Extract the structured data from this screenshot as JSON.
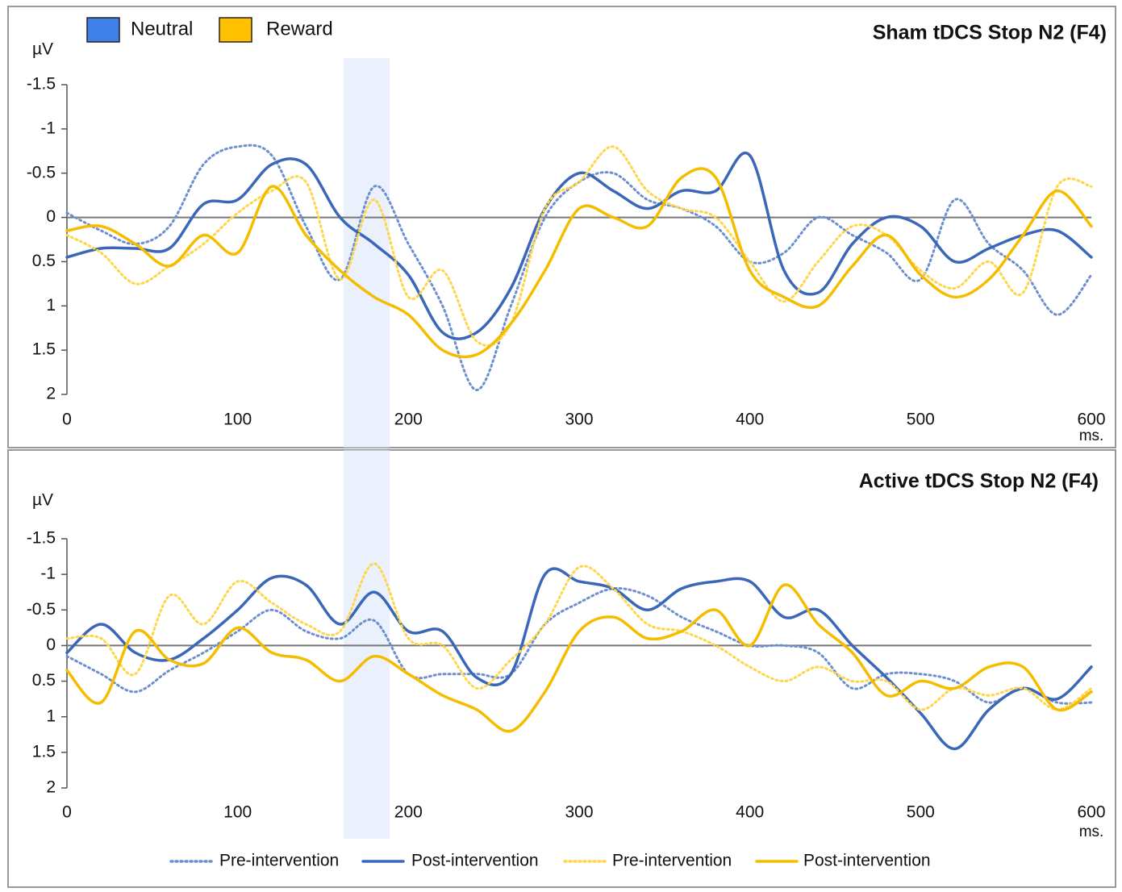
{
  "legend_groups": [
    {
      "name": "Neutral",
      "color": "#3f7fe8"
    },
    {
      "name": "Reward",
      "color": "#ffc000"
    }
  ],
  "chart_data": [
    {
      "type": "line",
      "title": "Sham tDCS Stop N2 (F4)",
      "y_label": "µV",
      "x_label": "ms.",
      "xlim": [
        0,
        600
      ],
      "xticks": [
        0,
        100,
        200,
        300,
        400,
        500,
        600
      ],
      "ylim": [
        2,
        -1.5
      ],
      "yticks": [
        -1.5,
        -1,
        -0.5,
        0,
        0.5,
        1,
        1.5,
        2
      ],
      "highlight": [
        162,
        189
      ],
      "x": [
        0,
        20,
        40,
        60,
        80,
        100,
        120,
        140,
        160,
        180,
        200,
        220,
        240,
        260,
        280,
        300,
        320,
        340,
        360,
        380,
        400,
        420,
        440,
        460,
        480,
        500,
        520,
        540,
        560,
        580,
        600
      ],
      "series": [
        {
          "name": "Pre-intervention",
          "color": "#6e8fcf",
          "dash": "dotted",
          "values": [
            -0.05,
            0.15,
            0.3,
            0.1,
            -0.6,
            -0.8,
            -0.7,
            0.1,
            0.7,
            -0.35,
            0.3,
            1.0,
            1.95,
            1.0,
            0.0,
            -0.4,
            -0.5,
            -0.2,
            -0.1,
            0.1,
            0.5,
            0.4,
            0.0,
            0.2,
            0.4,
            0.7,
            -0.2,
            0.3,
            0.6,
            1.1,
            0.65
          ]
        },
        {
          "name": "Post-intervention",
          "color": "#3a67b8",
          "dash": "solid",
          "values": [
            0.45,
            0.35,
            0.35,
            0.35,
            -0.15,
            -0.2,
            -0.6,
            -0.6,
            0.0,
            0.3,
            0.65,
            1.3,
            1.3,
            0.8,
            -0.1,
            -0.5,
            -0.3,
            -0.1,
            -0.3,
            -0.3,
            -0.7,
            0.6,
            0.85,
            0.3,
            0.0,
            0.1,
            0.5,
            0.35,
            0.2,
            0.15,
            0.45
          ]
        },
        {
          "name": "Pre-intervention",
          "color": "#ffd54a",
          "dash": "dotted",
          "values": [
            0.2,
            0.4,
            0.75,
            0.55,
            0.3,
            -0.05,
            -0.3,
            -0.4,
            0.7,
            -0.2,
            0.9,
            0.6,
            1.4,
            1.2,
            -0.1,
            -0.4,
            -0.8,
            -0.3,
            -0.1,
            0.0,
            0.5,
            0.95,
            0.5,
            0.1,
            0.2,
            0.6,
            0.8,
            0.5,
            0.85,
            -0.35,
            -0.35
          ]
        },
        {
          "name": "Post-intervention",
          "color": "#f5bd00",
          "dash": "solid",
          "values": [
            0.15,
            0.1,
            0.3,
            0.55,
            0.2,
            0.4,
            -0.35,
            0.2,
            0.6,
            0.9,
            1.1,
            1.5,
            1.55,
            1.2,
            0.6,
            -0.1,
            0.0,
            0.1,
            -0.45,
            -0.45,
            0.6,
            0.9,
            1.0,
            0.55,
            0.2,
            0.65,
            0.9,
            0.7,
            0.2,
            -0.3,
            0.1
          ]
        }
      ]
    },
    {
      "type": "line",
      "title": "Active tDCS Stop N2 (F4)",
      "y_label": "µV",
      "x_label": "ms.",
      "xlim": [
        0,
        600
      ],
      "xticks": [
        0,
        100,
        200,
        300,
        400,
        500,
        600
      ],
      "ylim": [
        2,
        -1.5
      ],
      "yticks": [
        -1.5,
        -1,
        -0.5,
        0,
        0.5,
        1,
        1.5,
        2
      ],
      "highlight": [
        162,
        189
      ],
      "x": [
        0,
        20,
        40,
        60,
        80,
        100,
        120,
        140,
        160,
        180,
        200,
        220,
        240,
        260,
        280,
        300,
        320,
        340,
        360,
        380,
        400,
        420,
        440,
        460,
        480,
        500,
        520,
        540,
        560,
        580,
        600
      ],
      "series": [
        {
          "name": "Pre-intervention",
          "color": "#6e8fcf",
          "dash": "dotted",
          "values": [
            0.15,
            0.4,
            0.65,
            0.35,
            0.1,
            -0.2,
            -0.5,
            -0.2,
            -0.1,
            -0.35,
            0.4,
            0.4,
            0.4,
            0.4,
            -0.3,
            -0.6,
            -0.8,
            -0.7,
            -0.4,
            -0.2,
            0.0,
            0.0,
            0.1,
            0.6,
            0.4,
            0.4,
            0.5,
            0.8,
            0.6,
            0.8,
            0.8
          ]
        },
        {
          "name": "Post-intervention",
          "color": "#3a67b8",
          "dash": "solid",
          "values": [
            0.1,
            -0.3,
            0.1,
            0.2,
            -0.1,
            -0.5,
            -0.95,
            -0.85,
            -0.3,
            -0.75,
            -0.2,
            -0.2,
            0.45,
            0.4,
            -1.0,
            -0.9,
            -0.8,
            -0.5,
            -0.8,
            -0.9,
            -0.9,
            -0.4,
            -0.5,
            0.0,
            0.45,
            0.95,
            1.45,
            0.9,
            0.6,
            0.75,
            0.3
          ]
        },
        {
          "name": "Pre-intervention",
          "color": "#ffd54a",
          "dash": "dotted",
          "values": [
            -0.1,
            -0.1,
            0.4,
            -0.7,
            -0.3,
            -0.9,
            -0.6,
            -0.3,
            -0.2,
            -1.15,
            -0.1,
            0.0,
            0.6,
            0.2,
            -0.3,
            -1.1,
            -0.8,
            -0.3,
            -0.2,
            0.0,
            0.3,
            0.5,
            0.3,
            0.5,
            0.5,
            0.9,
            0.6,
            0.7,
            0.6,
            0.9,
            0.6
          ]
        },
        {
          "name": "Post-intervention",
          "color": "#f5bd00",
          "dash": "solid",
          "values": [
            0.35,
            0.8,
            -0.2,
            0.2,
            0.25,
            -0.25,
            0.1,
            0.2,
            0.5,
            0.15,
            0.4,
            0.7,
            0.9,
            1.2,
            0.65,
            -0.2,
            -0.4,
            -0.1,
            -0.2,
            -0.5,
            0.0,
            -0.85,
            -0.3,
            0.1,
            0.7,
            0.5,
            0.6,
            0.3,
            0.3,
            0.9,
            0.65
          ]
        }
      ]
    }
  ]
}
